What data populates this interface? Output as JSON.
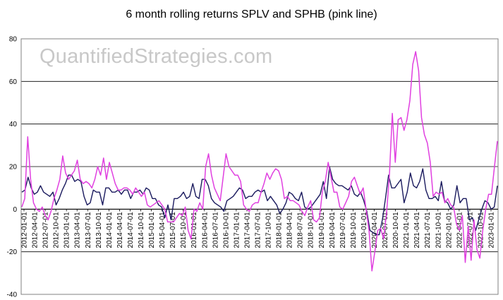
{
  "chart_data": {
    "type": "line",
    "title": "6 month rolling returns SPLV and SPHB (pink line)",
    "watermark": "QuantifiedStrategies.com",
    "xlabel": "",
    "ylabel": "",
    "ylim": [
      -40,
      80
    ],
    "yticks": [
      -40,
      -20,
      0,
      20,
      40,
      60,
      80
    ],
    "grid": "horizontal",
    "legend": "none",
    "x_tick_labels": [
      "2012-01-01",
      "2012-04-01",
      "2012-07-01",
      "2012-10-01",
      "2013-01-01",
      "2013-04-01",
      "2013-07-01",
      "2013-10-01",
      "2014-01-01",
      "2014-04-01",
      "2014-07-01",
      "2014-10-01",
      "2015-01-01",
      "2015-04-01",
      "2015-07-01",
      "2015-10-01",
      "2016-01-01",
      "2016-04-01",
      "2016-07-01",
      "2016-10-01",
      "2017-01-01",
      "2017-04-01",
      "2017-07-01",
      "2017-10-01",
      "2018-01-01",
      "2018-04-01",
      "2018-07-01",
      "2018-10-01",
      "2019-01-01",
      "2019-04-01",
      "2019-07-01",
      "2019-10-01",
      "2020-01-01",
      "2020-04-01",
      "2020-07-01",
      "2020-10-01",
      "2021-01-01",
      "2021-04-01",
      "2021-07-01",
      "2021-10-01",
      "2022-01-01",
      "2022-04-01",
      "2022-07-01",
      "2022-10-01",
      "2023-01-01"
    ],
    "series": [
      {
        "color": "#1a1a5e",
        "values": [
          8,
          9,
          15,
          10,
          7,
          8,
          11,
          8,
          7,
          6,
          8,
          2,
          5,
          9,
          12,
          16,
          16,
          13,
          14,
          13,
          6,
          2,
          3,
          9,
          8,
          8,
          2,
          10,
          10,
          8,
          8,
          9,
          7,
          9,
          9,
          5,
          8,
          8,
          9,
          7,
          10,
          9,
          5,
          5,
          2,
          1,
          -4,
          2,
          -5,
          5,
          5,
          6,
          8,
          5,
          6,
          12,
          6,
          5,
          14,
          14,
          11,
          5,
          3,
          2,
          1,
          -1,
          4,
          5,
          6,
          8,
          10,
          9,
          5,
          6,
          6,
          8,
          9,
          8,
          9,
          4,
          6,
          4,
          2,
          -2,
          0,
          3,
          8,
          7,
          5,
          4,
          8,
          1,
          0,
          1,
          3,
          5,
          7,
          13,
          5,
          20,
          14,
          12,
          11,
          11,
          10,
          9,
          11,
          7,
          6,
          8,
          4,
          -1,
          -10,
          -11,
          -12,
          -12,
          -5,
          5,
          16,
          10,
          10,
          12,
          14,
          3,
          8,
          17,
          11,
          10,
          13,
          19,
          9,
          5,
          5,
          6,
          4,
          13,
          4,
          3,
          0,
          2,
          11,
          3,
          5,
          5,
          -5,
          -4,
          -10,
          -5,
          0,
          4,
          3,
          0,
          1,
          11
        ]
      },
      {
        "color": "#e040e0",
        "values": [
          1,
          5,
          34,
          14,
          3,
          0,
          -1,
          1,
          -3,
          -5,
          -1,
          5,
          9,
          14,
          25,
          17,
          14,
          16,
          18,
          23,
          14,
          12,
          13,
          12,
          10,
          14,
          20,
          16,
          24,
          14,
          22,
          17,
          12,
          9,
          9,
          10,
          10,
          9,
          7,
          10,
          8,
          6,
          8,
          2,
          1,
          2,
          3,
          4,
          2,
          0,
          -6,
          -6,
          -6,
          -4,
          -2,
          -3,
          1,
          -10,
          -14,
          0,
          -1,
          3,
          0,
          20,
          26,
          16,
          10,
          7,
          4,
          15,
          26,
          20,
          18,
          16,
          16,
          13,
          2,
          0,
          -1,
          2,
          3,
          3,
          8,
          12,
          17,
          14,
          17,
          19,
          18,
          14,
          5,
          6,
          4,
          4,
          3,
          2,
          -1,
          -3,
          1,
          4,
          -5,
          -6,
          -4,
          8,
          13,
          22,
          15,
          8,
          8,
          1,
          0,
          3,
          6,
          13,
          15,
          11,
          7,
          10,
          0,
          -10,
          -29,
          -20,
          -10,
          -9,
          -14,
          -2,
          16,
          45,
          22,
          42,
          43,
          37,
          42,
          51,
          68,
          74,
          65,
          43,
          35,
          31,
          22,
          6,
          8,
          7,
          8,
          3,
          5,
          2,
          1,
          -7,
          -10,
          -3,
          -25,
          -8,
          -24,
          -5,
          -19,
          -23,
          -10,
          0,
          7,
          7,
          20,
          32
        ]
      }
    ]
  }
}
